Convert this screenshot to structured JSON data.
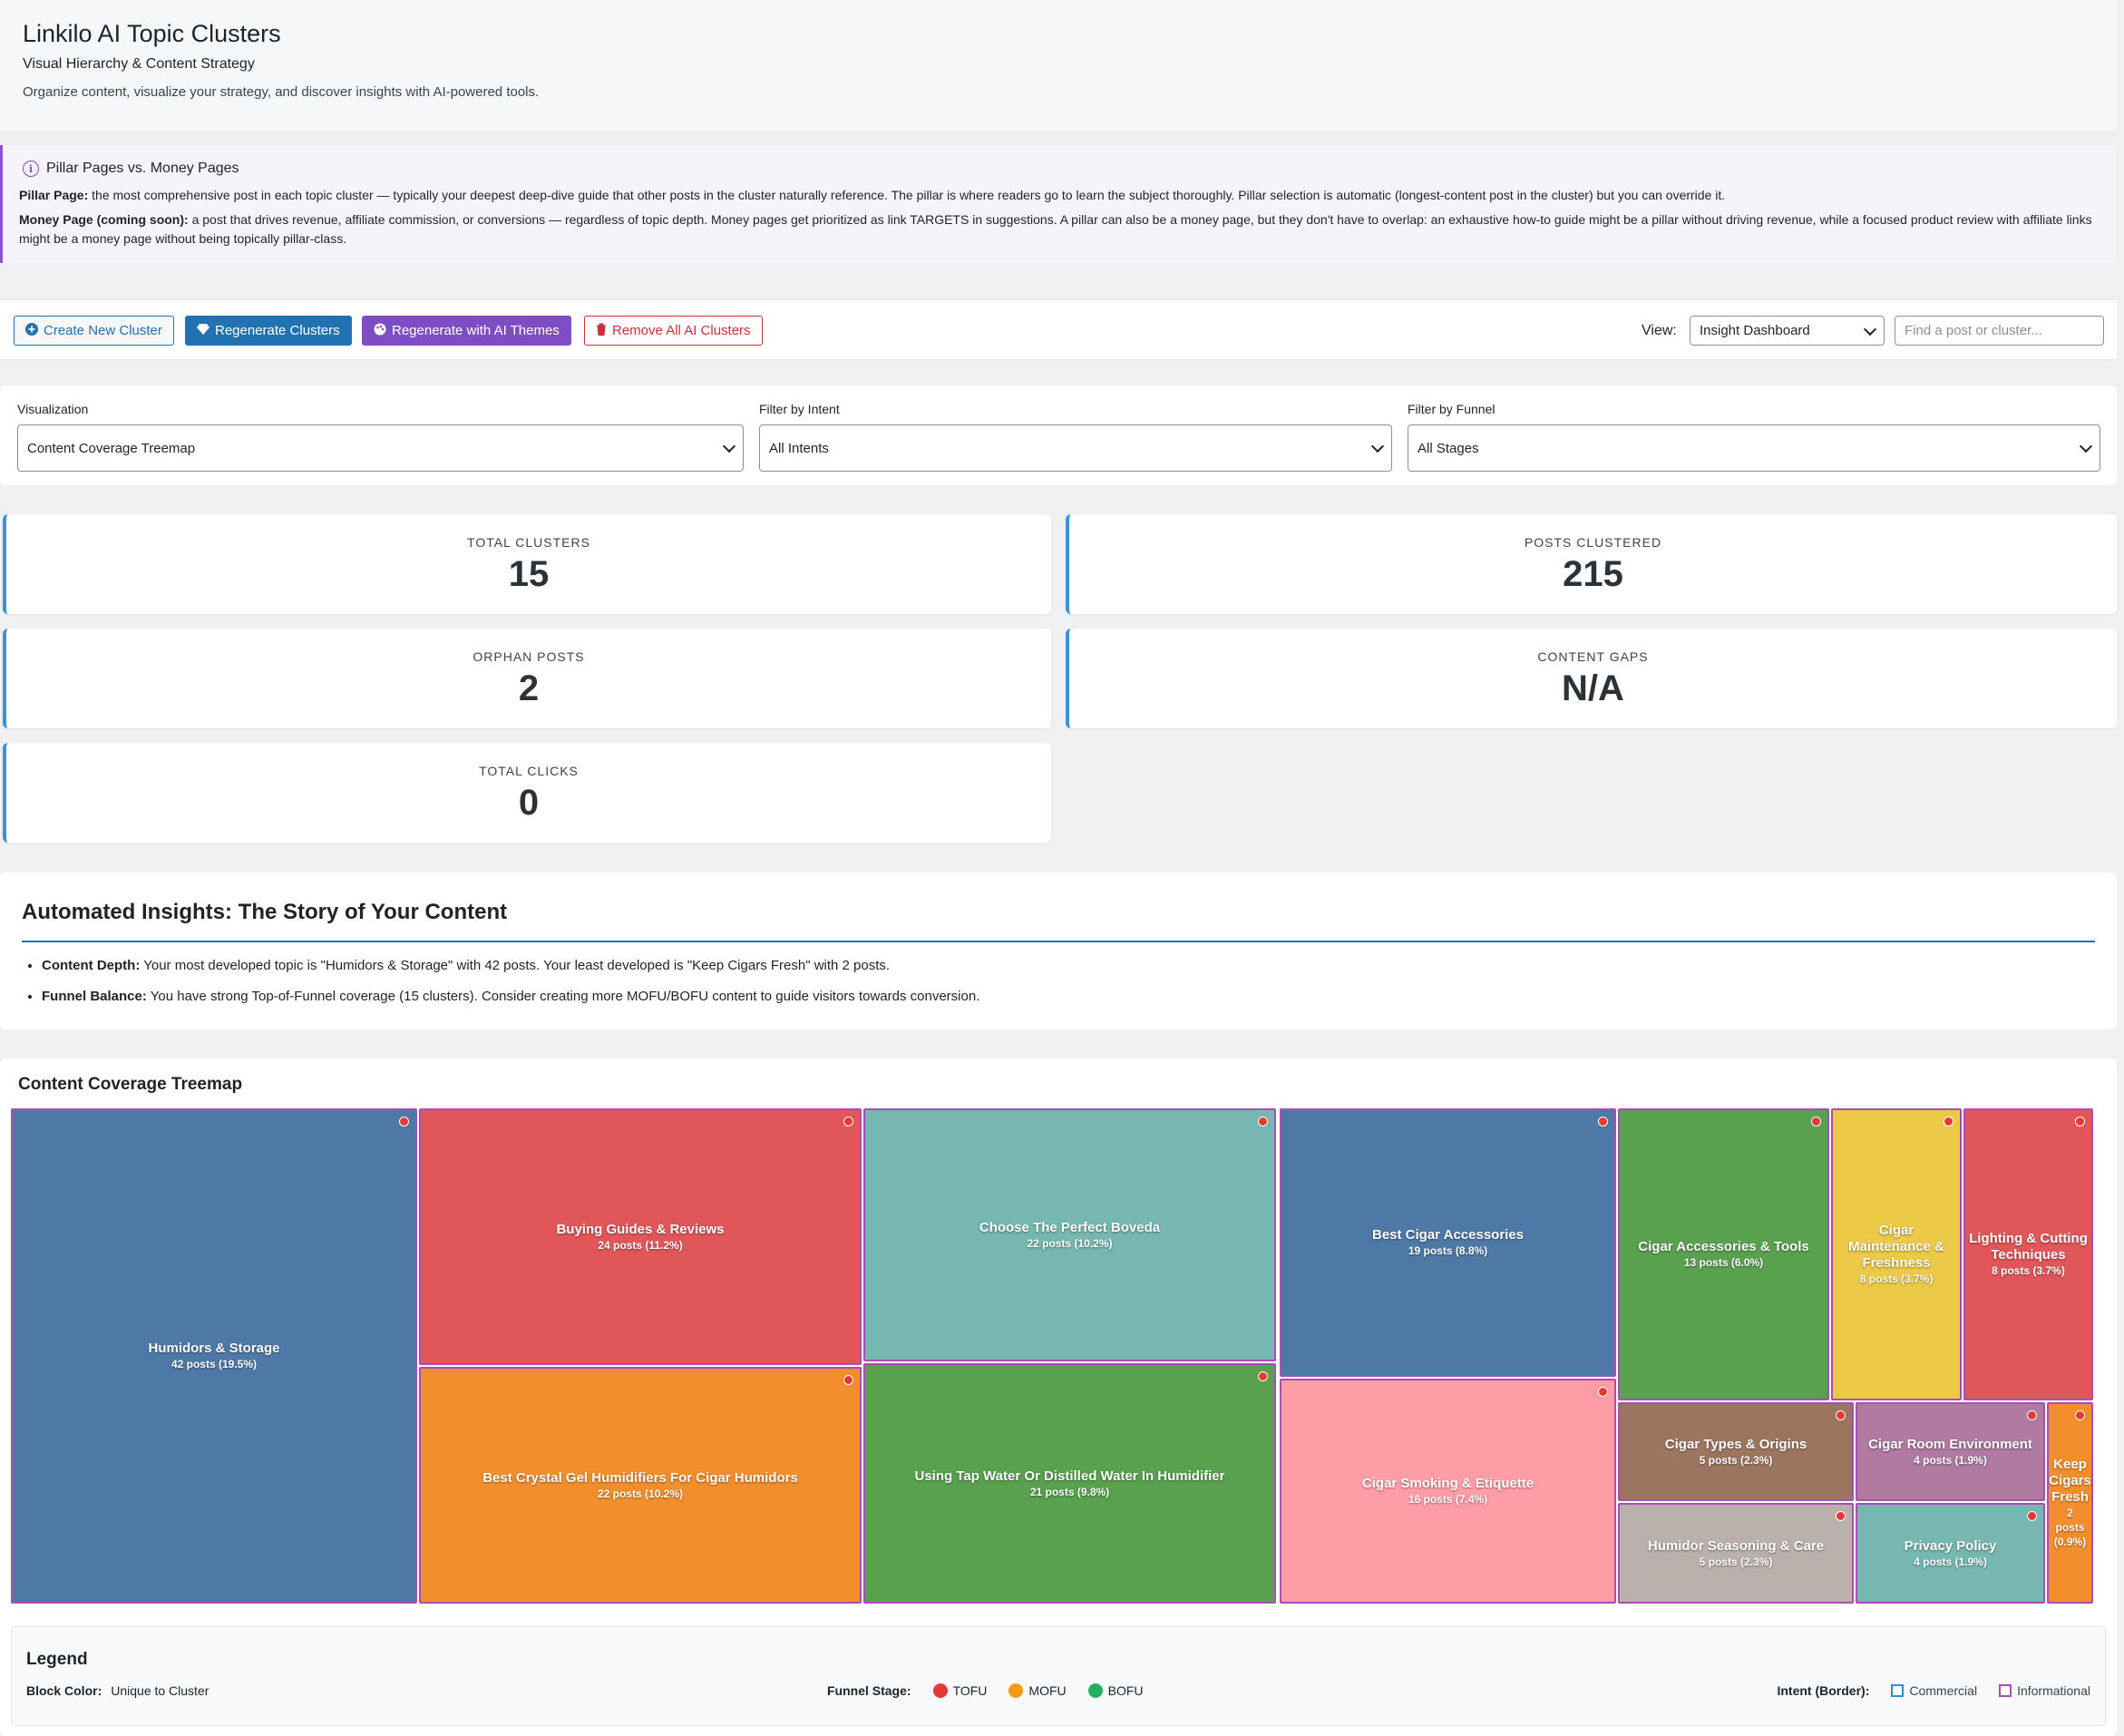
{
  "header": {
    "title": "Linkilo AI Topic Clusters",
    "subtitle": "Visual Hierarchy & Content Strategy",
    "description": "Organize content, visualize your strategy, and discover insights with AI-powered tools."
  },
  "notice": {
    "title": "Pillar Pages vs. Money Pages",
    "pillar_label": "Pillar Page:",
    "pillar_text": "the most comprehensive post in each topic cluster — typically your deepest deep-dive guide that other posts in the cluster naturally reference. The pillar is where readers go to learn the subject thoroughly. Pillar selection is automatic (longest-content post in the cluster) but you can override it.",
    "money_label": "Money Page (coming soon):",
    "money_text": "a post that drives revenue, affiliate commission, or conversions — regardless of topic depth. Money pages get prioritized as link TARGETS in suggestions. A pillar can also be a money page, but they don't have to overlap: an exhaustive how-to guide might be a pillar without driving revenue, while a focused product review with affiliate links might be a money page without being topically pillar-class."
  },
  "toolbar": {
    "create_label": "Create New Cluster",
    "regenerate_label": "Regenerate Clusters",
    "regenerate_ai_label": "Regenerate with AI Themes",
    "remove_label": "Remove All AI Clusters",
    "view_label": "View:",
    "view_value": "Insight Dashboard",
    "search_placeholder": "Find a post or cluster..."
  },
  "filters": {
    "visualization_label": "Visualization",
    "visualization_value": "Content Coverage Treemap",
    "intent_label": "Filter by Intent",
    "intent_value": "All Intents",
    "funnel_label": "Filter by Funnel",
    "funnel_value": "All Stages"
  },
  "stats": {
    "total_clusters": {
      "label": "TOTAL CLUSTERS",
      "value": "15"
    },
    "posts_clustered": {
      "label": "POSTS CLUSTERED",
      "value": "215"
    },
    "orphan_posts": {
      "label": "ORPHAN POSTS",
      "value": "2"
    },
    "content_gaps": {
      "label": "CONTENT GAPS",
      "value": "N/A"
    },
    "total_clicks": {
      "label": "TOTAL CLICKS",
      "value": "0"
    }
  },
  "insights": {
    "title": "Automated Insights: The Story of Your Content",
    "items": [
      {
        "label": "Content Depth:",
        "text": "Your most developed topic is \"Humidors & Storage\" with 42 posts. Your least developed is \"Keep Cigars Fresh\" with 2 posts."
      },
      {
        "label": "Funnel Balance:",
        "text": "You have strong Top-of-Funnel coverage (15 clusters). Consider creating more MOFU/BOFU content to guide visitors towards conversion."
      }
    ]
  },
  "treemap": {
    "title": "Content Coverage Treemap",
    "tiles": [
      {
        "name": "Humidors & Storage",
        "count": "42 posts (19.5%)",
        "color": "#4e79a7"
      },
      {
        "name": "Buying Guides & Reviews",
        "count": "24 posts (11.2%)",
        "color": "#e15759"
      },
      {
        "name": "Best Crystal Gel Humidifiers For Cigar Humidors",
        "count": "22 posts (10.2%)",
        "color": "#f28e2b"
      },
      {
        "name": "Choose The Perfect Boveda",
        "count": "22 posts (10.2%)",
        "color": "#76b7b2"
      },
      {
        "name": "Using Tap Water Or Distilled Water In Humidifier",
        "count": "21 posts (9.8%)",
        "color": "#59a14f"
      },
      {
        "name": "Best Cigar Accessories",
        "count": "19 posts (8.8%)",
        "color": "#4e79a7"
      },
      {
        "name": "Cigar Smoking & Etiquette",
        "count": "16 posts (7.4%)",
        "color": "#ff9da7"
      },
      {
        "name": "Cigar Accessories & Tools",
        "count": "13 posts (6.0%)",
        "color": "#59a14f"
      },
      {
        "name": "Cigar Maintenance & Freshness",
        "count": "8 posts (3.7%)",
        "color": "#edc948"
      },
      {
        "name": "Lighting & Cutting Techniques",
        "count": "8 posts (3.7%)",
        "color": "#e15759"
      },
      {
        "name": "Cigar Types & Origins",
        "count": "5 posts (2.3%)",
        "color": "#9c755f"
      },
      {
        "name": "Cigar Room Environment",
        "count": "4 posts (1.9%)",
        "color": "#b07aa1"
      },
      {
        "name": "Keep Cigars Fresh",
        "count": "2 posts (0.9%)",
        "color": "#f28e2b"
      },
      {
        "name": "Humidor Seasoning & Care",
        "count": "5 posts (2.3%)",
        "color": "#bab0ac"
      },
      {
        "name": "Privacy Policy",
        "count": "4 posts (1.9%)",
        "color": "#76b7b2"
      }
    ]
  },
  "legend": {
    "title": "Legend",
    "block_color_label": "Block Color:",
    "block_color_value": "Unique to Cluster",
    "funnel_label": "Funnel Stage:",
    "funnel_items": [
      {
        "label": "TOFU",
        "color": "#e53935"
      },
      {
        "label": "MOFU",
        "color": "#f39c12"
      },
      {
        "label": "BOFU",
        "color": "#27ae60"
      }
    ],
    "intent_label": "Intent (Border):",
    "intent_items": [
      {
        "label": "Commercial",
        "color": "#2a8fd6"
      },
      {
        "label": "Informational",
        "color": "#a84fb5"
      }
    ]
  }
}
